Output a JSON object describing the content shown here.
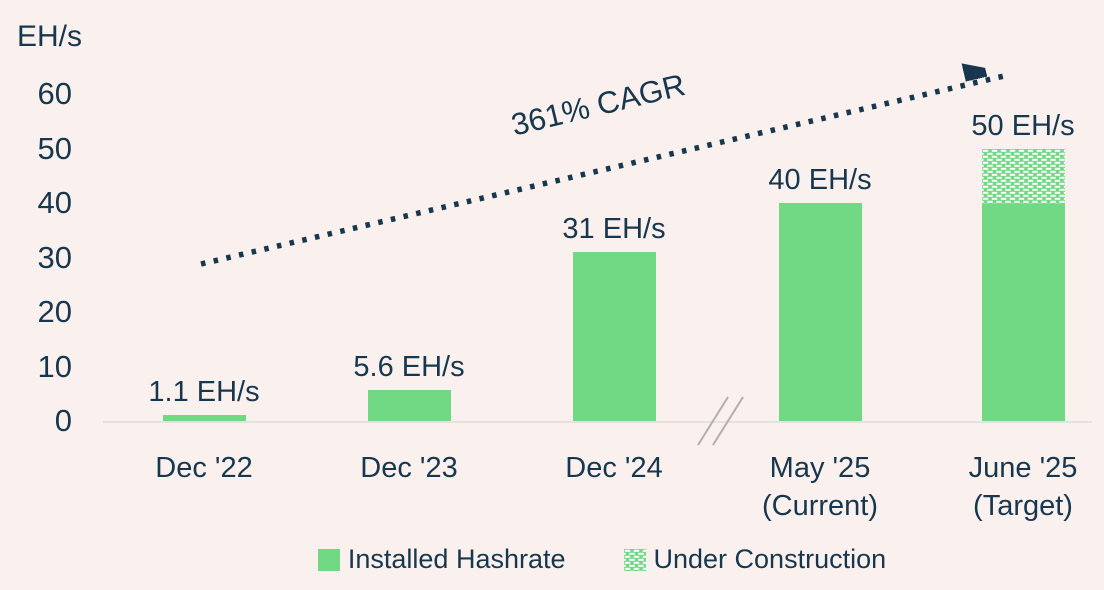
{
  "chart_data": {
    "type": "bar",
    "title": "",
    "y_unit": "EH/s",
    "ylim": [
      0,
      60
    ],
    "yticks": [
      0,
      10,
      20,
      30,
      40,
      50,
      60
    ],
    "categories": [
      [
        "Dec '22"
      ],
      [
        "Dec '23"
      ],
      [
        "Dec '24"
      ],
      [
        "May '25",
        "(Current)"
      ],
      [
        "June '25",
        "(Target)"
      ]
    ],
    "series": [
      {
        "name": "Installed Hashrate",
        "style": "solid",
        "values": [
          1.1,
          5.6,
          31,
          40,
          40
        ]
      },
      {
        "name": "Under Construction",
        "style": "hatch",
        "values": [
          0,
          0,
          0,
          0,
          10
        ]
      }
    ],
    "bar_total_labels": [
      "1.1 EH/s",
      "5.6 EH/s",
      "31 EH/s",
      "40 EH/s",
      "50 EH/s"
    ],
    "annotation": {
      "label": "361% CAGR"
    },
    "axis_break_between": [
      "Dec '24",
      "May '25"
    ],
    "legend": [
      "Installed Hashrate",
      "Under Construction"
    ],
    "legend_position": "bottom",
    "grid": false,
    "colors": {
      "background": "#faf0ed",
      "bar_green": "#71d884",
      "text_navy": "#17374e",
      "axis_line": "#e7e0dd",
      "break_mark": "#b3aeab"
    }
  }
}
